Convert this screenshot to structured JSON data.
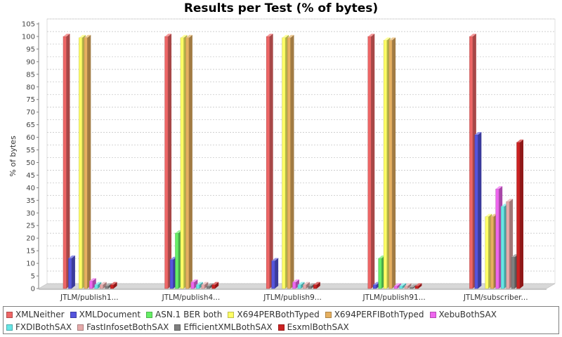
{
  "chart_data": {
    "type": "bar",
    "title": "Results per Test (% of bytes)",
    "ylabel": "% of bytes",
    "xlabel": "",
    "ylim": [
      0,
      105
    ],
    "yticks": [
      0,
      5,
      10,
      15,
      20,
      25,
      30,
      35,
      40,
      45,
      50,
      55,
      60,
      65,
      70,
      75,
      80,
      85,
      90,
      95,
      100,
      105
    ],
    "grid": true,
    "legend_position": "bottom",
    "categories": [
      "JTLM/publish1...",
      "JTLM/publish4...",
      "JTLM/publish9...",
      "JTLM/publish91...",
      "JTLM/subscriber..."
    ],
    "series": [
      {
        "name": "XMLNeither",
        "color": "#ee6666",
        "values": [
          100,
          100,
          100,
          100,
          100
        ]
      },
      {
        "name": "XMLDocument",
        "color": "#5555dd",
        "values": [
          12,
          11.5,
          11,
          1.5,
          61
        ]
      },
      {
        "name": "ASN.1 BER both",
        "color": "#66ee66",
        "values": [
          0,
          22,
          0,
          12,
          0
        ]
      },
      {
        "name": "X694PERBothTyped",
        "color": "#ffff66",
        "values": [
          99.5,
          99.5,
          99.5,
          98.5,
          28.5
        ]
      },
      {
        "name": "X694PERFIBothTyped",
        "color": "#e6b060",
        "values": [
          99.5,
          99.5,
          99.5,
          98.5,
          28.5
        ]
      },
      {
        "name": "XebuBothSAX",
        "color": "#ee66ee",
        "values": [
          3,
          2.5,
          2.5,
          1,
          39.5
        ]
      },
      {
        "name": "FXDIBothSAX",
        "color": "#66e6e6",
        "values": [
          1.5,
          1.5,
          1.5,
          1,
          32.5
        ]
      },
      {
        "name": "FastInfosetBothSAX",
        "color": "#e6aaaa",
        "values": [
          1.5,
          1.5,
          1.5,
          1,
          34.5
        ]
      },
      {
        "name": "EfficientXMLBothSAX",
        "color": "#808080",
        "values": [
          1,
          1,
          1,
          0.5,
          12.5
        ]
      },
      {
        "name": "EsxmlBothSAX",
        "color": "#cc2222",
        "values": [
          1.5,
          1.5,
          1.5,
          1,
          58
        ]
      }
    ]
  }
}
